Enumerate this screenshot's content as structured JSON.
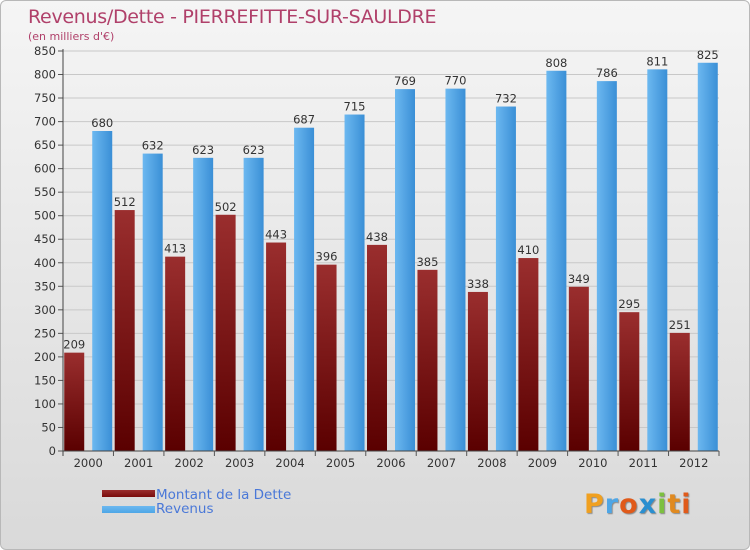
{
  "chart_data": {
    "type": "bar",
    "title": "Revenus/Dette - PIERREFITTE-SUR-SAULDRE",
    "subtitle": "(en milliers d'€)",
    "categories": [
      "2000",
      "2001",
      "2002",
      "2003",
      "2004",
      "2005",
      "2006",
      "2007",
      "2008",
      "2009",
      "2010",
      "2011",
      "2012"
    ],
    "series": [
      {
        "name": "Montant de la Dette",
        "color": "#7a0c0c",
        "values": [
          209,
          512,
          413,
          502,
          443,
          396,
          438,
          385,
          338,
          410,
          349,
          295,
          251
        ]
      },
      {
        "name": "Revenus",
        "color": "#4ea6e6",
        "values": [
          680,
          632,
          623,
          623,
          687,
          715,
          769,
          770,
          732,
          808,
          786,
          811,
          825
        ]
      }
    ],
    "ylim": [
      0,
      850
    ],
    "ytick_step": 50,
    "grid": true,
    "legend": "bottom-left"
  },
  "legend": {
    "items": [
      {
        "label": "Montant de la Dette",
        "color": "#7a0c0c"
      },
      {
        "label": "Revenus",
        "color": "#4ea6e6"
      }
    ]
  },
  "logo": {
    "text": "Proxiti"
  }
}
